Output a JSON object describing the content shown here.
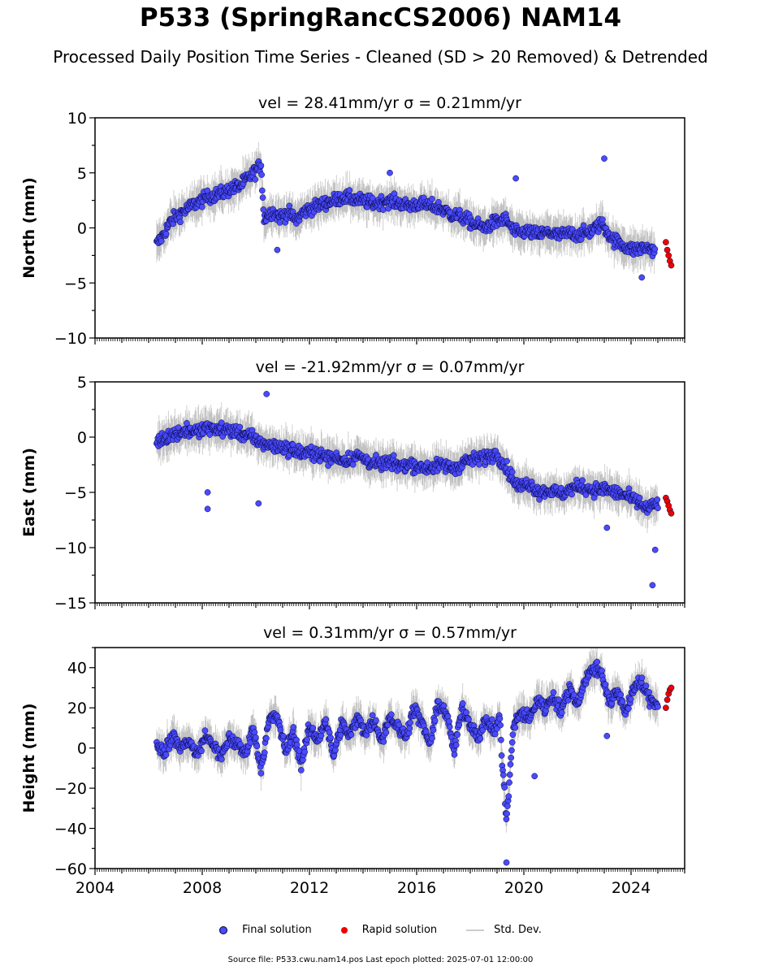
{
  "title": "P533 (SpringRancCS2006) NAM14",
  "subtitle": "Processed Daily Position Time Series - Cleaned (SD > 20 Removed) & Detrended",
  "legend": {
    "final": "Final solution",
    "rapid": "Rapid solution",
    "std": "Std. Dev."
  },
  "footer": "Source file: P533.cwu.nam14.pos  Last epoch plotted: 2025-07-01 12:00:00",
  "colors": {
    "final": "#4a4aff",
    "rapid": "#ee0000",
    "std": "#cccccc",
    "edge": "#000033"
  },
  "chart_data": [
    {
      "type": "scatter",
      "panel": "north",
      "title": "vel = 28.41mm/yr   σ = 0.21mm/yr",
      "ylabel": "North (mm)",
      "ylim": [
        -10,
        10
      ],
      "yticks": [
        -10,
        -5,
        0,
        5,
        10
      ],
      "xlim": [
        2004,
        2026
      ],
      "xticks": [
        2004,
        2008,
        2012,
        2016,
        2020,
        2024
      ],
      "final_series": [
        [
          2006.3,
          -1.5
        ],
        [
          2006.5,
          -0.8
        ],
        [
          2006.8,
          0.5
        ],
        [
          2007.0,
          1.0
        ],
        [
          2007.3,
          1.5
        ],
        [
          2007.6,
          2.0
        ],
        [
          2007.9,
          2.4
        ],
        [
          2008.2,
          2.8
        ],
        [
          2008.5,
          3.0
        ],
        [
          2008.8,
          3.2
        ],
        [
          2009.1,
          3.6
        ],
        [
          2009.4,
          3.8
        ],
        [
          2009.7,
          4.5
        ],
        [
          2010.0,
          5.2
        ],
        [
          2010.2,
          5.8
        ],
        [
          2010.3,
          0.8
        ],
        [
          2010.6,
          1.5
        ],
        [
          2010.9,
          1.0
        ],
        [
          2011.2,
          1.4
        ],
        [
          2011.5,
          0.7
        ],
        [
          2011.8,
          1.5
        ],
        [
          2012.1,
          1.8
        ],
        [
          2012.5,
          2.2
        ],
        [
          2012.9,
          2.5
        ],
        [
          2013.3,
          2.8
        ],
        [
          2013.7,
          2.6
        ],
        [
          2014.1,
          2.4
        ],
        [
          2014.5,
          2.2
        ],
        [
          2014.9,
          2.5
        ],
        [
          2015.3,
          2.3
        ],
        [
          2015.7,
          2.0
        ],
        [
          2016.1,
          2.2
        ],
        [
          2016.5,
          2.0
        ],
        [
          2016.9,
          1.8
        ],
        [
          2017.3,
          1.2
        ],
        [
          2017.7,
          1.0
        ],
        [
          2018.1,
          0.4
        ],
        [
          2018.5,
          0.0
        ],
        [
          2018.9,
          0.5
        ],
        [
          2019.3,
          0.8
        ],
        [
          2019.7,
          -0.5
        ],
        [
          2020.1,
          -0.3
        ],
        [
          2020.5,
          -0.6
        ],
        [
          2020.9,
          -0.4
        ],
        [
          2021.3,
          -0.7
        ],
        [
          2021.7,
          -0.5
        ],
        [
          2022.1,
          -0.6
        ],
        [
          2022.5,
          -0.3
        ],
        [
          2022.9,
          0.4
        ],
        [
          2023.3,
          -1.0
        ],
        [
          2023.7,
          -1.6
        ],
        [
          2024.1,
          -2.0
        ],
        [
          2024.5,
          -1.8
        ],
        [
          2024.9,
          -2.0
        ]
      ],
      "rapid_series": [
        [
          2025.3,
          -1.3
        ],
        [
          2025.35,
          -2.0
        ],
        [
          2025.4,
          -2.5
        ],
        [
          2025.45,
          -3.0
        ],
        [
          2025.5,
          -3.4
        ]
      ],
      "outliers": [
        [
          2019.7,
          4.5
        ],
        [
          2023.0,
          6.3
        ],
        [
          2010.8,
          -2.0
        ],
        [
          2024.4,
          -4.5
        ],
        [
          2015.0,
          5.0
        ]
      ]
    },
    {
      "type": "scatter",
      "panel": "east",
      "title": "vel = -21.92mm/yr   σ = 0.07mm/yr",
      "ylabel": "East (mm)",
      "ylim": [
        -15,
        5
      ],
      "yticks": [
        -15,
        -10,
        -5,
        0,
        5
      ],
      "xlim": [
        2004,
        2026
      ],
      "xticks": [
        2004,
        2008,
        2012,
        2016,
        2020,
        2024
      ],
      "final_series": [
        [
          2006.3,
          -0.5
        ],
        [
          2006.6,
          0.0
        ],
        [
          2007.0,
          0.3
        ],
        [
          2007.4,
          0.6
        ],
        [
          2007.8,
          0.5
        ],
        [
          2008.2,
          0.8
        ],
        [
          2008.6,
          0.7
        ],
        [
          2009.0,
          0.6
        ],
        [
          2009.4,
          0.4
        ],
        [
          2009.8,
          0.0
        ],
        [
          2010.2,
          -0.5
        ],
        [
          2010.6,
          -0.8
        ],
        [
          2011.0,
          -0.9
        ],
        [
          2011.4,
          -1.2
        ],
        [
          2011.8,
          -1.5
        ],
        [
          2012.2,
          -1.4
        ],
        [
          2012.6,
          -1.8
        ],
        [
          2013.0,
          -1.9
        ],
        [
          2013.4,
          -2.1
        ],
        [
          2013.8,
          -1.7
        ],
        [
          2014.2,
          -2.2
        ],
        [
          2014.6,
          -2.5
        ],
        [
          2015.0,
          -2.3
        ],
        [
          2015.4,
          -2.6
        ],
        [
          2015.8,
          -2.4
        ],
        [
          2016.2,
          -2.8
        ],
        [
          2016.6,
          -2.7
        ],
        [
          2017.0,
          -2.5
        ],
        [
          2017.4,
          -2.9
        ],
        [
          2017.8,
          -2.2
        ],
        [
          2018.2,
          -2.0
        ],
        [
          2018.6,
          -1.8
        ],
        [
          2019.0,
          -1.5
        ],
        [
          2019.4,
          -3.0
        ],
        [
          2019.8,
          -4.5
        ],
        [
          2020.2,
          -4.2
        ],
        [
          2020.6,
          -5.0
        ],
        [
          2021.0,
          -4.8
        ],
        [
          2021.4,
          -5.2
        ],
        [
          2021.8,
          -4.6
        ],
        [
          2022.2,
          -4.5
        ],
        [
          2022.6,
          -4.8
        ],
        [
          2023.0,
          -4.7
        ],
        [
          2023.4,
          -5.0
        ],
        [
          2023.8,
          -5.3
        ],
        [
          2024.2,
          -5.8
        ],
        [
          2024.6,
          -6.5
        ],
        [
          2025.0,
          -6.0
        ]
      ],
      "rapid_series": [
        [
          2025.3,
          -5.5
        ],
        [
          2025.35,
          -5.8
        ],
        [
          2025.4,
          -6.2
        ],
        [
          2025.45,
          -6.6
        ],
        [
          2025.5,
          -6.9
        ]
      ],
      "outliers": [
        [
          2008.2,
          -5.0
        ],
        [
          2008.2,
          -6.5
        ],
        [
          2010.1,
          -6.0
        ],
        [
          2010.4,
          3.9
        ],
        [
          2024.8,
          -13.4
        ],
        [
          2024.9,
          -10.2
        ],
        [
          2023.1,
          -8.2
        ]
      ]
    },
    {
      "type": "scatter",
      "panel": "height",
      "title": "vel = 0.31mm/yr   σ = 0.57mm/yr",
      "ylabel": "Height (mm)",
      "ylim": [
        -60,
        50
      ],
      "yticks": [
        -60,
        -40,
        -20,
        0,
        20,
        40
      ],
      "xlim": [
        2004,
        2026
      ],
      "xticks": [
        2004,
        2008,
        2012,
        2016,
        2020,
        2024
      ],
      "final_series": [
        [
          2006.3,
          2
        ],
        [
          2006.6,
          -2
        ],
        [
          2006.9,
          6
        ],
        [
          2007.2,
          0
        ],
        [
          2007.5,
          4
        ],
        [
          2007.8,
          -4
        ],
        [
          2008.1,
          6
        ],
        [
          2008.4,
          2
        ],
        [
          2008.7,
          -5
        ],
        [
          2009.0,
          5
        ],
        [
          2009.3,
          2
        ],
        [
          2009.6,
          -3
        ],
        [
          2009.9,
          10
        ],
        [
          2010.2,
          -10
        ],
        [
          2010.5,
          14
        ],
        [
          2010.8,
          16
        ],
        [
          2011.1,
          -2
        ],
        [
          2011.4,
          8
        ],
        [
          2011.7,
          -8
        ],
        [
          2012.0,
          10
        ],
        [
          2012.3,
          4
        ],
        [
          2012.6,
          14
        ],
        [
          2012.9,
          -4
        ],
        [
          2013.2,
          12
        ],
        [
          2013.5,
          6
        ],
        [
          2013.8,
          15
        ],
        [
          2014.1,
          8
        ],
        [
          2014.4,
          14
        ],
        [
          2014.7,
          4
        ],
        [
          2015.0,
          16
        ],
        [
          2015.3,
          10
        ],
        [
          2015.6,
          6
        ],
        [
          2015.9,
          20
        ],
        [
          2016.2,
          12
        ],
        [
          2016.5,
          2
        ],
        [
          2016.8,
          22
        ],
        [
          2017.1,
          18
        ],
        [
          2017.4,
          -2
        ],
        [
          2017.7,
          20
        ],
        [
          2018.0,
          12
        ],
        [
          2018.3,
          6
        ],
        [
          2018.6,
          14
        ],
        [
          2018.9,
          8
        ],
        [
          2019.1,
          16
        ],
        [
          2019.2,
          -10
        ],
        [
          2019.3,
          -25
        ],
        [
          2019.35,
          -35
        ],
        [
          2019.45,
          -20
        ],
        [
          2019.6,
          10
        ],
        [
          2019.9,
          18
        ],
        [
          2020.2,
          14
        ],
        [
          2020.5,
          24
        ],
        [
          2020.8,
          20
        ],
        [
          2021.1,
          26
        ],
        [
          2021.4,
          18
        ],
        [
          2021.7,
          30
        ],
        [
          2022.0,
          22
        ],
        [
          2022.3,
          34
        ],
        [
          2022.6,
          40
        ],
        [
          2022.9,
          38
        ],
        [
          2023.2,
          22
        ],
        [
          2023.5,
          28
        ],
        [
          2023.8,
          18
        ],
        [
          2024.1,
          30
        ],
        [
          2024.4,
          32
        ],
        [
          2024.7,
          24
        ],
        [
          2025.0,
          22
        ]
      ],
      "rapid_series": [
        [
          2025.3,
          20
        ],
        [
          2025.35,
          24
        ],
        [
          2025.4,
          27
        ],
        [
          2025.45,
          29
        ],
        [
          2025.5,
          30
        ]
      ],
      "outliers": [
        [
          2019.35,
          -57
        ],
        [
          2020.4,
          -14
        ],
        [
          2023.1,
          6
        ]
      ]
    }
  ]
}
